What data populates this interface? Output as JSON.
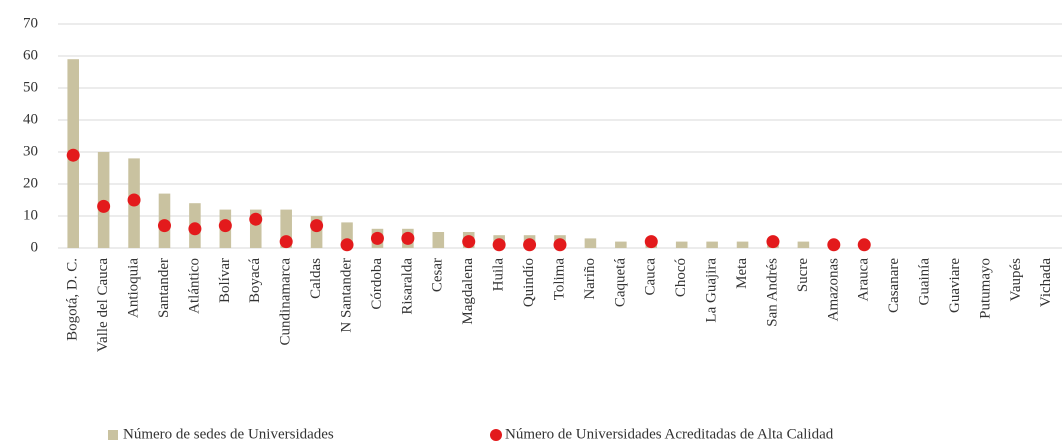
{
  "chart_data": {
    "type": "bar",
    "categories": [
      "Bogotá, D. C.",
      "Valle del Cauca",
      "Antioquia",
      "Santander",
      "Atlántico",
      "Bolívar",
      "Boyacá",
      "Cundinamarca",
      "Caldas",
      "N Santander",
      "Córdoba",
      "Risaralda",
      "Cesar",
      "Magdalena",
      "Huila",
      "Quindío",
      "Tolima",
      "Nariño",
      "Caquetá",
      "Cauca",
      "Chocó",
      "La Guajira",
      "Meta",
      "San Andrés",
      "Sucre",
      "Amazonas",
      "Arauca",
      "Casanare",
      "Guainía",
      "Guaviare",
      "Putumayo",
      "Vaupés",
      "Vichada"
    ],
    "series": [
      {
        "name": "Número de sedes de Universidades",
        "type": "bar",
        "color": "#c9c2a0",
        "values": [
          59,
          30,
          28,
          17,
          14,
          12,
          12,
          12,
          10,
          8,
          6,
          6,
          5,
          5,
          4,
          4,
          4,
          3,
          2,
          2,
          2,
          2,
          2,
          2,
          2,
          1,
          1,
          0,
          0,
          0,
          0,
          0,
          0
        ]
      },
      {
        "name": "Número de Universidades Acreditadas de Alta Calidad",
        "type": "scatter",
        "color": "#e31a1c",
        "values": [
          29,
          13,
          15,
          7,
          6,
          7,
          9,
          2,
          7,
          1,
          3,
          3,
          null,
          2,
          1,
          1,
          1,
          null,
          null,
          2,
          null,
          null,
          null,
          2,
          null,
          1,
          1,
          null,
          null,
          null,
          null,
          null,
          null
        ]
      }
    ],
    "ylim": [
      0,
      70
    ],
    "yticks": [
      0,
      10,
      20,
      30,
      40,
      50,
      60,
      70
    ],
    "grid": true,
    "legend": "bottom"
  }
}
